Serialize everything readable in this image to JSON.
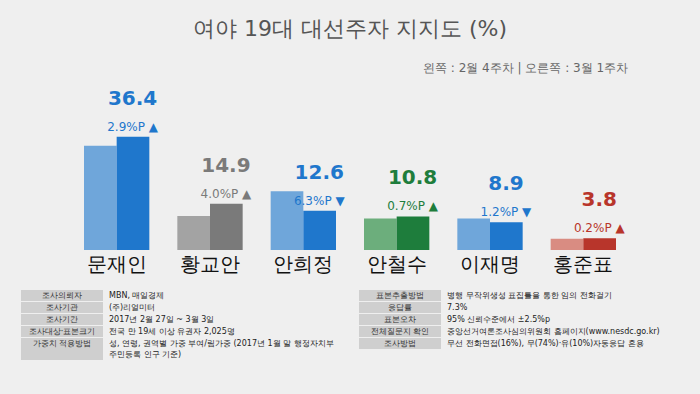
{
  "chart_data": {
    "type": "bar",
    "title": "여야 19대 대선주자 지지도 (%)",
    "subtitle": "왼쪽 : 2월 4주차 | 오른쪽 : 3월 1주차",
    "categories": [
      "문재인",
      "황교안",
      "안희정",
      "안철수",
      "이재명",
      "홍준표"
    ],
    "series": [
      {
        "values": [
          33.5,
          10.9,
          18.9,
          10.1,
          10.1,
          3.6
        ],
        "colors": [
          "#6fa6da",
          "#a3a3a3",
          "#6fa6da",
          "#6cae7c",
          "#6fa6da",
          "#d98c82"
        ],
        "data_labels": false
      },
      {
        "values": [
          36.4,
          14.9,
          12.6,
          10.8,
          8.9,
          3.8
        ],
        "colors": [
          "#1f77cc",
          "#7a7a7a",
          "#1f77cc",
          "#1e7d3c",
          "#1f77cc",
          "#b8352b"
        ],
        "data_labels": true,
        "change_labels": [
          "2.9%P ▲",
          "4.0%P ▲",
          "6.3%P ▼",
          "0.7%P ▲",
          "1.2%P ▼",
          "0.2%P ▲"
        ]
      }
    ],
    "ylim": [
      0,
      45
    ],
    "yticks": [],
    "grid": false,
    "tick_labels": "x",
    "notes": {
      "left": [
        [
          "조사의뢰자",
          "MBN, 매일경제"
        ],
        [
          "조사기관",
          "(주)리얼미터"
        ],
        [
          "조사기간",
          "2017년 2월 27일 ~ 3월 3일"
        ],
        [
          "조사대상·표본크기",
          "전국 만 19세 이상 유권자 2,025명"
        ],
        [
          "가중치 적용방법",
          "성, 연령, 권역별 가중 부여/림가중 (2017년 1월 말 행정자치부 주민등록 인구 기준)"
        ]
      ],
      "right": [
        [
          "표본추출방법",
          "병행 무작위생성 표집틀을 통한 임의 전화걸기"
        ],
        [
          "응답률",
          "7.3%"
        ],
        [
          "표본오차",
          "95% 신뢰수준에서 ±2.5%p"
        ],
        [
          "전체질문지 확인",
          "중앙선거여론조사심의위원회 홈페이지(www.nesdc.go.kr)"
        ],
        [
          "조사방법",
          "무선 전화면접(16%), 무(74%)·유(10%)자동응답 혼용"
        ]
      ]
    }
  }
}
